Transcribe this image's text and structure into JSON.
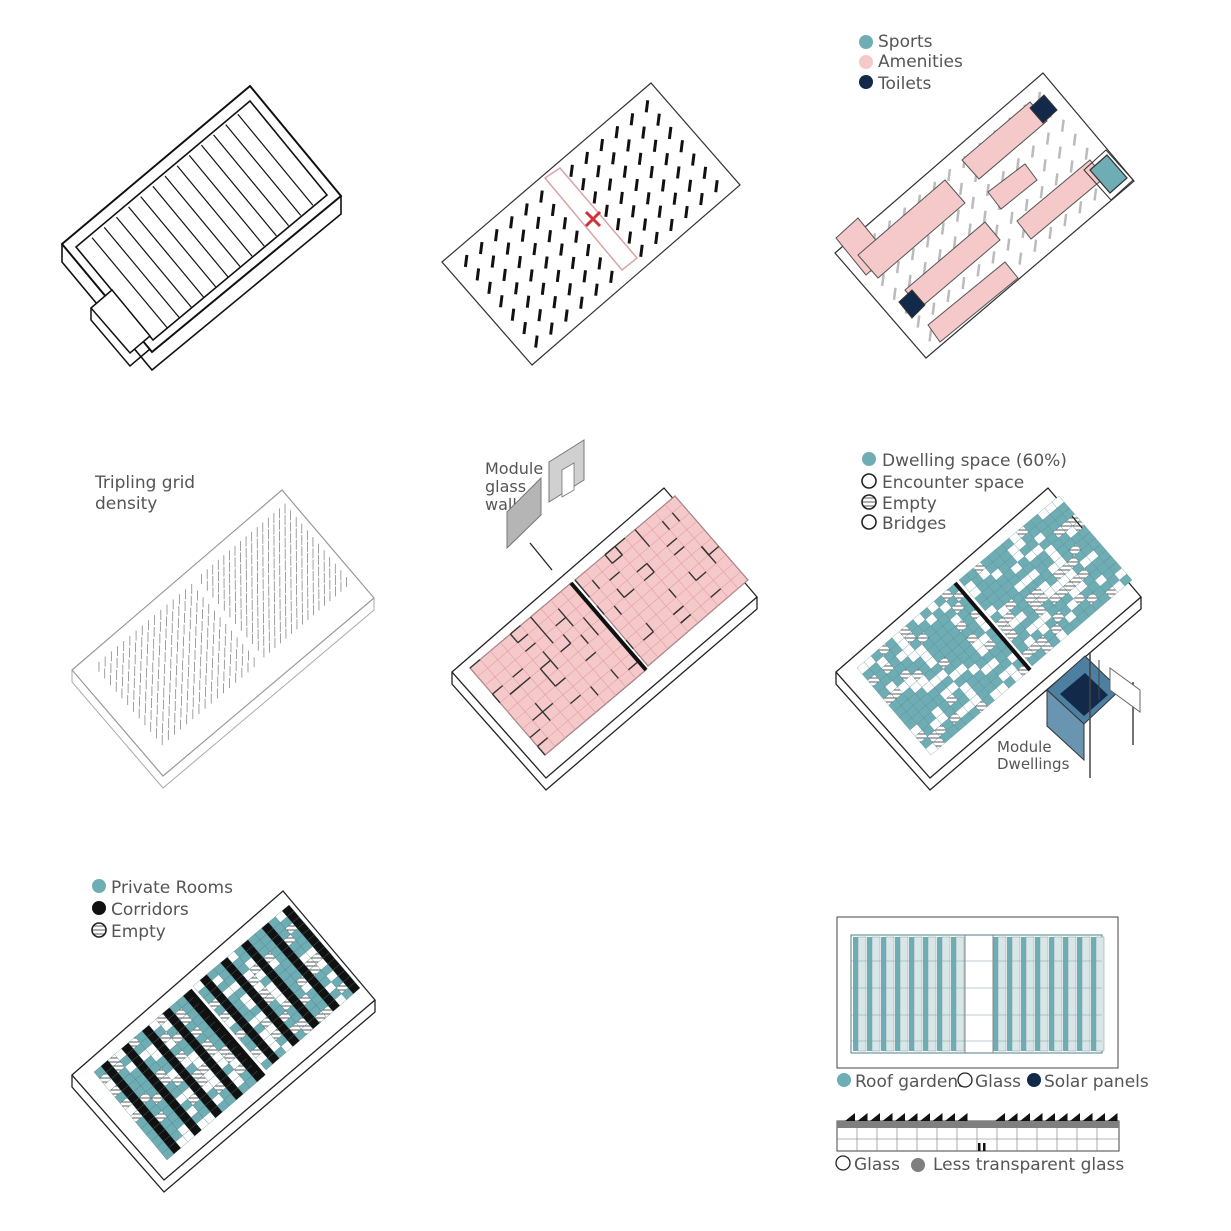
{
  "colors": {
    "teal": "#6fadb5",
    "pink": "#f5c9c9",
    "navy": "#12294a",
    "ink": "#111111",
    "line": "#222222",
    "grey": "#7f7f7f",
    "red": "#d0313b",
    "label": "#555555"
  },
  "panel_amenities": {
    "legend": [
      "Sports",
      "Amenities",
      "Toilets"
    ]
  },
  "panel_grid": {
    "label_line1": "Tripling grid",
    "label_line2": "density"
  },
  "panel_module_walls": {
    "label_line1": "Module",
    "label_line2": "glass",
    "label_line3": "wall"
  },
  "panel_dwellings": {
    "legend": [
      "Dwelling space (60%)",
      "Encounter space",
      "Empty",
      "Bridges"
    ],
    "label_line1": "Module",
    "label_line2": "Dwellings"
  },
  "panel_private_rooms": {
    "legend": [
      "Private Rooms",
      "Corridors",
      "Empty"
    ]
  },
  "panel_roof": {
    "legend_roof": [
      "Roof gardens",
      "Glass",
      "Solar panels"
    ],
    "legend_section": [
      "Glass",
      "Less transparent glass"
    ]
  }
}
